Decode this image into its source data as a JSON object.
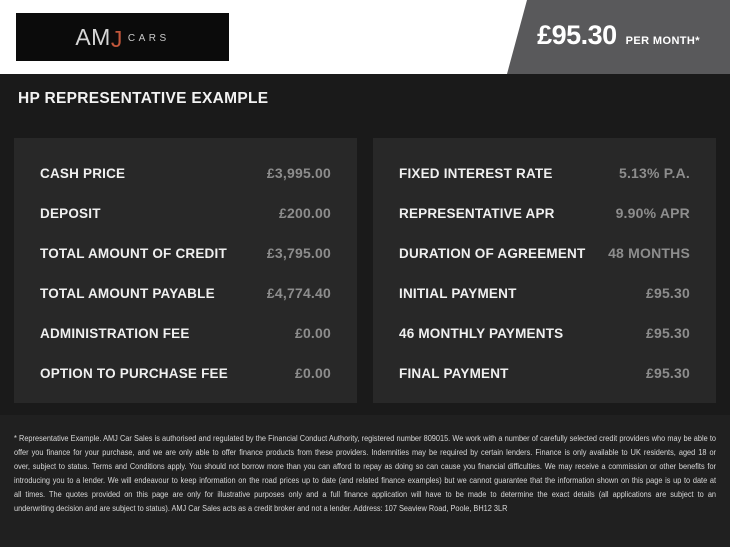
{
  "brand": {
    "logo_am": "AM",
    "logo_j": "J",
    "logo_cars": "CARS",
    "accent_color": "#c2573b",
    "logo_bg_color": "#0b0b0b"
  },
  "price_banner": {
    "amount": "£95.30",
    "suffix": "PER MONTH*",
    "bg_color": "#59595b"
  },
  "heading": "HP REPRESENTATIVE EXAMPLE",
  "panels": [
    {
      "rows": [
        {
          "label": "CASH PRICE",
          "value": "£3,995.00"
        },
        {
          "label": "DEPOSIT",
          "value": "£200.00"
        },
        {
          "label": "TOTAL AMOUNT OF CREDIT",
          "value": "£3,795.00"
        },
        {
          "label": "TOTAL AMOUNT PAYABLE",
          "value": "£4,774.40"
        },
        {
          "label": "ADMINISTRATION FEE",
          "value": "£0.00"
        },
        {
          "label": "OPTION TO PURCHASE FEE",
          "value": "£0.00"
        }
      ]
    },
    {
      "rows": [
        {
          "label": "FIXED INTEREST RATE",
          "value": "5.13% P.A."
        },
        {
          "label": "REPRESENTATIVE APR",
          "value": "9.90% APR"
        },
        {
          "label": "DURATION OF AGREEMENT",
          "value": "48 MONTHS"
        },
        {
          "label": "INITIAL PAYMENT",
          "value": "£95.30"
        },
        {
          "label": "46 MONTHLY PAYMENTS",
          "value": "£95.30"
        },
        {
          "label": "FINAL PAYMENT",
          "value": "£95.30"
        }
      ]
    }
  ],
  "footnote": {
    "lines": [
      "* Representative Example. AMJ Car Sales is authorised and regulated by the Financial Conduct Authority, registered number 809015. We work with a number of carefully selected credit providers who may be able to",
      "offer you finance for your purchase, and we are only able to offer finance products from these providers. Indemnities may be required by certain lenders. Finance is only available to UK residents, aged 18 or",
      "over, subject to status. Terms and Conditions apply. You should not borrow more than you can afford to repay as doing so can cause you financial difficulties. We may receive a commission or other benefits for",
      "introducing you to a lender. We will endeavour to keep information on the road prices up to date (and related finance examples) but we cannot guarantee that the information shown on this page is up to date at",
      "all times. The quotes provided on this page are only for illustrative purposes only and a full finance application will have to be made to determine the exact details (all applications are subject to an",
      "underwriting decision and are subject to status). AMJ Car Sales acts as a credit broker and not a lender. Address: 107 Seaview Road, Poole, BH12 3LR"
    ]
  },
  "colors": {
    "page_bg": "#1a1a1a",
    "panel_bg": "#282828",
    "footer_bg": "#202020",
    "label_text": "#f0f0f0",
    "value_text": "#8d8d8d",
    "topbar_bg": "#ffffff"
  }
}
